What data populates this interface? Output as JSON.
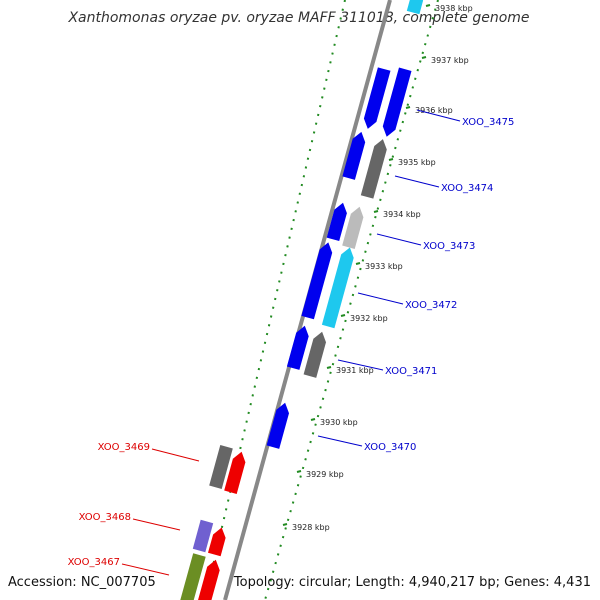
{
  "title": "Xanthomonas oryzae pv. oryzae MAFF 311018, complete genome",
  "accession": "Accession: NC_007705",
  "topology": "Topology: circular; Length: 4,940,217 bp; Genes: 4,431",
  "colors": {
    "forward_label": "#0000cc",
    "reverse_label": "#dd0000",
    "backbone": "#888888",
    "dotted_track": "#228b22",
    "gene_blue": "#0000ee",
    "gene_red": "#ee0000",
    "gene_cyan": "#1ec8ee",
    "gene_gray": "#666666",
    "gene_lightgray": "#bbbbbb",
    "gene_purple": "#7060d0",
    "gene_olive": "#6b8e23"
  },
  "ticks": [
    {
      "label": "3938 kbp",
      "faded": true
    },
    {
      "label": "3937 kbp"
    },
    {
      "label": "3936 kbp"
    },
    {
      "label": "3935 kbp"
    },
    {
      "label": "3934 kbp"
    },
    {
      "label": "3933 kbp"
    },
    {
      "label": "3932 kbp"
    },
    {
      "label": "3931 kbp"
    },
    {
      "label": "3930 kbp"
    },
    {
      "label": "3929 kbp"
    },
    {
      "label": "3928 kbp"
    }
  ],
  "forward_labels": [
    "XOO_3475",
    "XOO_3474",
    "XOO_3473",
    "XOO_3472",
    "XOO_3471",
    "XOO_3470"
  ],
  "reverse_labels": [
    "XOO_3469",
    "XOO_3468",
    "XOO_3467"
  ]
}
